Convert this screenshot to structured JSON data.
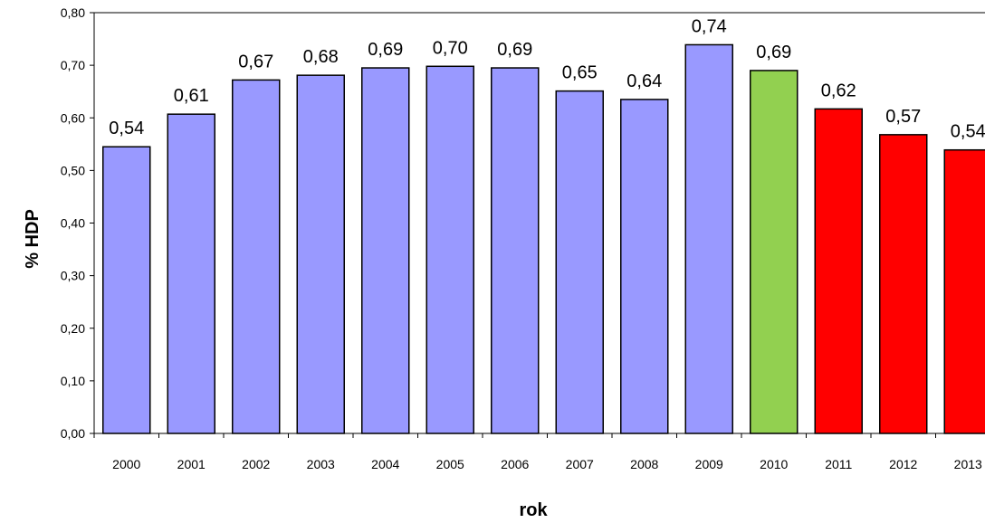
{
  "chart_data": {
    "type": "bar",
    "title": "",
    "xlabel": "rok",
    "ylabel": "% HDP",
    "ylim": [
      0,
      0.8
    ],
    "y_ticks": [
      "0,00",
      "0,10",
      "0,20",
      "0,30",
      "0,40",
      "0,50",
      "0,60",
      "0,70",
      "0,80"
    ],
    "grid": false,
    "legend": "none",
    "categories": [
      "2000",
      "2001",
      "2002",
      "2003",
      "2004",
      "2005",
      "2006",
      "2007",
      "2008",
      "2009",
      "2010",
      "2011",
      "2012",
      "2013"
    ],
    "values": [
      0.545,
      0.607,
      0.672,
      0.681,
      0.695,
      0.698,
      0.695,
      0.651,
      0.635,
      0.739,
      0.69,
      0.617,
      0.568,
      0.539
    ],
    "data_labels": [
      "0,54",
      "0,61",
      "0,67",
      "0,68",
      "0,69",
      "0,70",
      "0,69",
      "0,65",
      "0,64",
      "0,74",
      "0,69",
      "0,62",
      "0,57",
      "0,54"
    ],
    "bar_colors": [
      "#9999ff",
      "#9999ff",
      "#9999ff",
      "#9999ff",
      "#9999ff",
      "#9999ff",
      "#9999ff",
      "#9999ff",
      "#9999ff",
      "#9999ff",
      "#92d050",
      "#ff0000",
      "#ff0000",
      "#ff0000"
    ]
  }
}
